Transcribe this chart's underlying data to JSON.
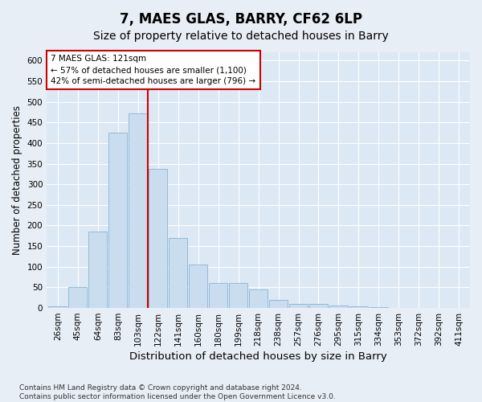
{
  "title": "7, MAES GLAS, BARRY, CF62 6LP",
  "subtitle": "Size of property relative to detached houses in Barry",
  "xlabel": "Distribution of detached houses by size in Barry",
  "ylabel": "Number of detached properties",
  "categories": [
    "26sqm",
    "45sqm",
    "64sqm",
    "83sqm",
    "103sqm",
    "122sqm",
    "141sqm",
    "160sqm",
    "180sqm",
    "199sqm",
    "218sqm",
    "238sqm",
    "257sqm",
    "276sqm",
    "295sqm",
    "315sqm",
    "334sqm",
    "353sqm",
    "372sqm",
    "392sqm",
    "411sqm"
  ],
  "values": [
    5,
    50,
    185,
    425,
    472,
    338,
    170,
    105,
    60,
    60,
    45,
    20,
    10,
    10,
    6,
    4,
    2,
    1,
    1,
    1,
    1
  ],
  "bar_color": "#c9ddef",
  "bar_edge_color": "#8ab4d4",
  "vline_color": "#cc0000",
  "vline_x_index": 4.5,
  "annotation_text": "7 MAES GLAS: 121sqm\n← 57% of detached houses are smaller (1,100)\n42% of semi-detached houses are larger (796) →",
  "annotation_box_color": "#ffffff",
  "annotation_box_edge": "#cc0000",
  "ylim": [
    0,
    620
  ],
  "yticks": [
    0,
    50,
    100,
    150,
    200,
    250,
    300,
    350,
    400,
    450,
    500,
    550,
    600
  ],
  "bg_color": "#e8eef5",
  "plot_bg_color": "#dce8f4",
  "footer": "Contains HM Land Registry data © Crown copyright and database right 2024.\nContains public sector information licensed under the Open Government Licence v3.0.",
  "title_fontsize": 12,
  "subtitle_fontsize": 10,
  "xlabel_fontsize": 9.5,
  "ylabel_fontsize": 8.5,
  "tick_fontsize": 7.5,
  "annot_fontsize": 7.5,
  "footer_fontsize": 6.5
}
